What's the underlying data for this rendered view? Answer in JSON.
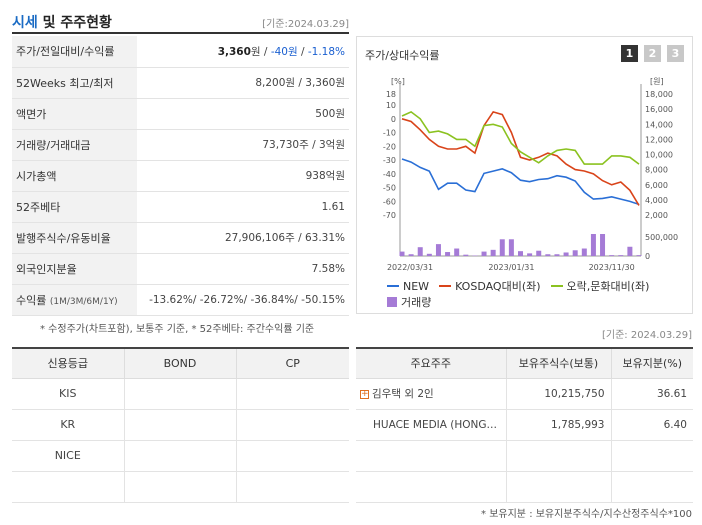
{
  "header": {
    "title_a": "시세",
    "title_b": " 및 주주현황",
    "date": "[기준:2024.03.29]"
  },
  "quote": {
    "rows": [
      {
        "label": "주가/전일대비/수익률",
        "price": "3,360",
        "unit": "원",
        "sep": " / ",
        "change": "-40원",
        "sep2": " / ",
        "rate": "-1.18%"
      },
      {
        "label": "52Weeks 최고/최저",
        "value": "8,200원 / 3,360원"
      },
      {
        "label": "액면가",
        "value": "500원"
      },
      {
        "label": "거래량/거래대금",
        "value": "73,730주 / 3억원"
      },
      {
        "label": "시가총액",
        "value": "938억원"
      },
      {
        "label": "52주베타",
        "value": "1.61"
      },
      {
        "label": "발행주식수/유동비율",
        "value": "27,906,106주 / 63.31%"
      },
      {
        "label": "외국인지분율",
        "value": "7.58%"
      },
      {
        "label": "수익률",
        "label_small": "(1M/3M/6M/1Y)",
        "value": "-13.62%/ -26.72%/ -36.84%/ -50.15%"
      }
    ],
    "note": "* 수정주가(차트포함), 보통주 기준, * 52주베타: 주간수익률 기준"
  },
  "chart_box": {
    "title": "주가/상대수익률",
    "tabs": [
      "1",
      "2",
      "3"
    ],
    "left_unit": "[%]",
    "right_unit": "[원]",
    "legend": {
      "new": "NEW",
      "kosdaq": "KOSDAQ대비(좌)",
      "leisure": "오락,문화대비(좌)",
      "volume": "거래량"
    },
    "colors": {
      "new": "#2a6fd6",
      "kosdaq": "#d9441a",
      "leisure": "#8bc220",
      "volume": "#a57bd6"
    }
  },
  "chart_data": {
    "type": "line",
    "x_ticks": [
      "2022/03/31",
      "2023/01/31",
      "2023/11/30"
    ],
    "y_left": {
      "unit": "[%]",
      "ticks": [
        18,
        10,
        0,
        -10,
        -20,
        -30,
        -40,
        -50,
        -60,
        -70
      ],
      "range": [
        -70,
        18
      ]
    },
    "y_right": {
      "unit": "[원]",
      "ticks": [
        "18,000",
        "16,000",
        "14,000",
        "12,000",
        "10,000",
        "8,000",
        "6,000",
        "4,000",
        "2,000"
      ],
      "range": [
        2000,
        18000
      ]
    },
    "y_volume": {
      "ticks": [
        "500,000",
        "0"
      ],
      "range": [
        0,
        500000
      ]
    },
    "series": [
      {
        "name": "NEW",
        "axis": "right",
        "values": [
          9400,
          9000,
          8300,
          7800,
          5400,
          6200,
          6200,
          5300,
          5100,
          7500,
          7800,
          8100,
          7600,
          6600,
          6400,
          6700,
          6800,
          7200,
          7000,
          6500,
          5000,
          4100,
          4200,
          4400,
          4100,
          3800,
          3400
        ]
      },
      {
        "name": "KOSDAQ대비(좌)",
        "axis": "left",
        "values": [
          0,
          -2,
          -8,
          -15,
          -20,
          -22,
          -22,
          -20,
          -25,
          -5,
          5,
          3,
          -10,
          -28,
          -30,
          -28,
          -25,
          -27,
          -33,
          -37,
          -38,
          -40,
          -45,
          -48,
          -46,
          -52,
          -63
        ]
      },
      {
        "name": "오락,문화대비(좌)",
        "axis": "left",
        "values": [
          2,
          5,
          0,
          -10,
          -9,
          -11,
          -15,
          -15,
          -20,
          -5,
          -4,
          -6,
          -18,
          -24,
          -28,
          -32,
          -27,
          -23,
          -22,
          -23,
          -33,
          -33,
          -33,
          -27,
          -27,
          -28,
          -33
        ]
      }
    ],
    "volume": [
      100000,
      40000,
      200000,
      50000,
      270000,
      90000,
      170000,
      30000,
      10000,
      100000,
      140000,
      380000,
      380000,
      110000,
      60000,
      120000,
      40000,
      40000,
      80000,
      130000,
      170000,
      520000,
      540000,
      20000,
      20000,
      210000,
      20000
    ]
  },
  "date2": "[기준: 2024.03.29]",
  "credit": {
    "headers": [
      "신용등급",
      "BOND",
      "CP"
    ],
    "rows": [
      {
        "agency": "KIS",
        "bond": "",
        "cp": ""
      },
      {
        "agency": "KR",
        "bond": "",
        "cp": ""
      },
      {
        "agency": "NICE",
        "bond": "",
        "cp": ""
      },
      {
        "agency": "",
        "bond": "",
        "cp": ""
      }
    ]
  },
  "holders": {
    "headers": [
      "주요주주",
      "보유주식수(보통)",
      "보유지분(%)"
    ],
    "rows": [
      {
        "name": "김우택 외 2인",
        "shares": "10,215,750",
        "pct": "36.61",
        "expand": "+"
      },
      {
        "name": "HUACE MEDIA (HONG…",
        "shares": "1,785,993",
        "pct": "6.40",
        "expand": ""
      },
      {
        "name": "",
        "shares": "",
        "pct": "",
        "expand": ""
      },
      {
        "name": "",
        "shares": "",
        "pct": "",
        "expand": ""
      }
    ],
    "note": "* 보유지분 : 보유지분주식수/지수산정주식수*100"
  }
}
